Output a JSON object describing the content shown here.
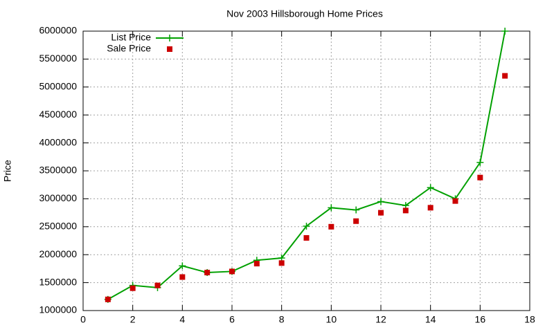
{
  "chart_data": {
    "type": "line",
    "title": "Nov 2003 Hillsborough Home Prices",
    "y_label": "Price",
    "x": [
      1,
      2,
      3,
      4,
      5,
      6,
      7,
      8,
      9,
      10,
      11,
      12,
      13,
      14,
      15,
      16,
      17
    ],
    "series": [
      {
        "name": "List Price",
        "color": "#00a000",
        "style": "linespoints",
        "values": [
          1200000,
          1450000,
          1410000,
          1800000,
          1680000,
          1700000,
          1900000,
          1940000,
          2510000,
          2840000,
          2800000,
          2950000,
          2880000,
          3200000,
          3000000,
          3650000,
          6000000
        ]
      },
      {
        "name": "Sale Price",
        "color": "#cc0000",
        "style": "points",
        "values": [
          1200000,
          1400000,
          1450000,
          1600000,
          1680000,
          1700000,
          1840000,
          1850000,
          2300000,
          2500000,
          2600000,
          2750000,
          2790000,
          2840000,
          2960000,
          3380000,
          5200000
        ]
      }
    ],
    "xlim": [
      0,
      18
    ],
    "xticks": [
      0,
      2,
      4,
      6,
      8,
      10,
      12,
      14,
      16,
      18
    ],
    "ylim": [
      1000000,
      6000000
    ],
    "yticks": [
      1000000,
      1500000,
      2000000,
      2500000,
      3000000,
      3500000,
      4000000,
      4500000,
      5000000,
      5500000,
      6000000
    ],
    "grid": true,
    "legend": "top-left"
  }
}
